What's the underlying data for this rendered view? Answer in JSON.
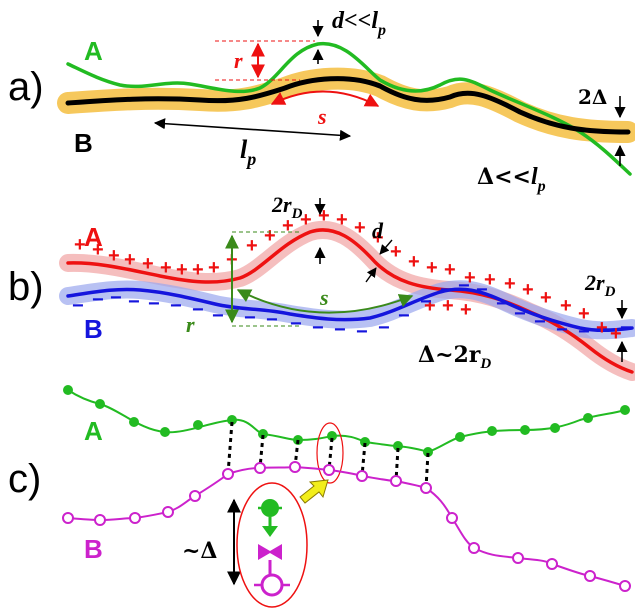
{
  "panels": {
    "a": {
      "label": "a)",
      "chain_A": "A",
      "chain_B": "B",
      "r_label": "r",
      "s_label": "s",
      "d_label": "d<<",
      "d_lp": "l",
      "d_lp_sub": "p",
      "lp_label": "l",
      "lp_sub": "p",
      "two_delta": "2Δ",
      "delta_label": "Δ<<",
      "delta_lp": "l",
      "delta_lp_sub": "p"
    },
    "b": {
      "label": "b)",
      "chain_A": "A",
      "chain_B": "B",
      "two_rd_top": "2r",
      "two_rd_top_sub": "D",
      "d_label": "d",
      "s_label": "s",
      "r_label": "r",
      "two_rd_right": "2r",
      "two_rd_right_sub": "D",
      "delta_label": "Δ~2r",
      "delta_sub": "D",
      "plus": "+",
      "minus": "−"
    },
    "c": {
      "label": "c)",
      "chain_A": "A",
      "chain_B": "B",
      "approx_delta": "~Δ"
    }
  },
  "colors": {
    "green": "#22bb22",
    "red": "#ee1111",
    "blue": "#1515dd",
    "magenta": "#cc22cc",
    "orange_band": "#f5c24a",
    "pink_band": "#f3b3b3",
    "lightblue_band": "#9aa6ee",
    "dark_green": "#3a8a1a",
    "yellow_arrow": "#f2ee1a"
  }
}
